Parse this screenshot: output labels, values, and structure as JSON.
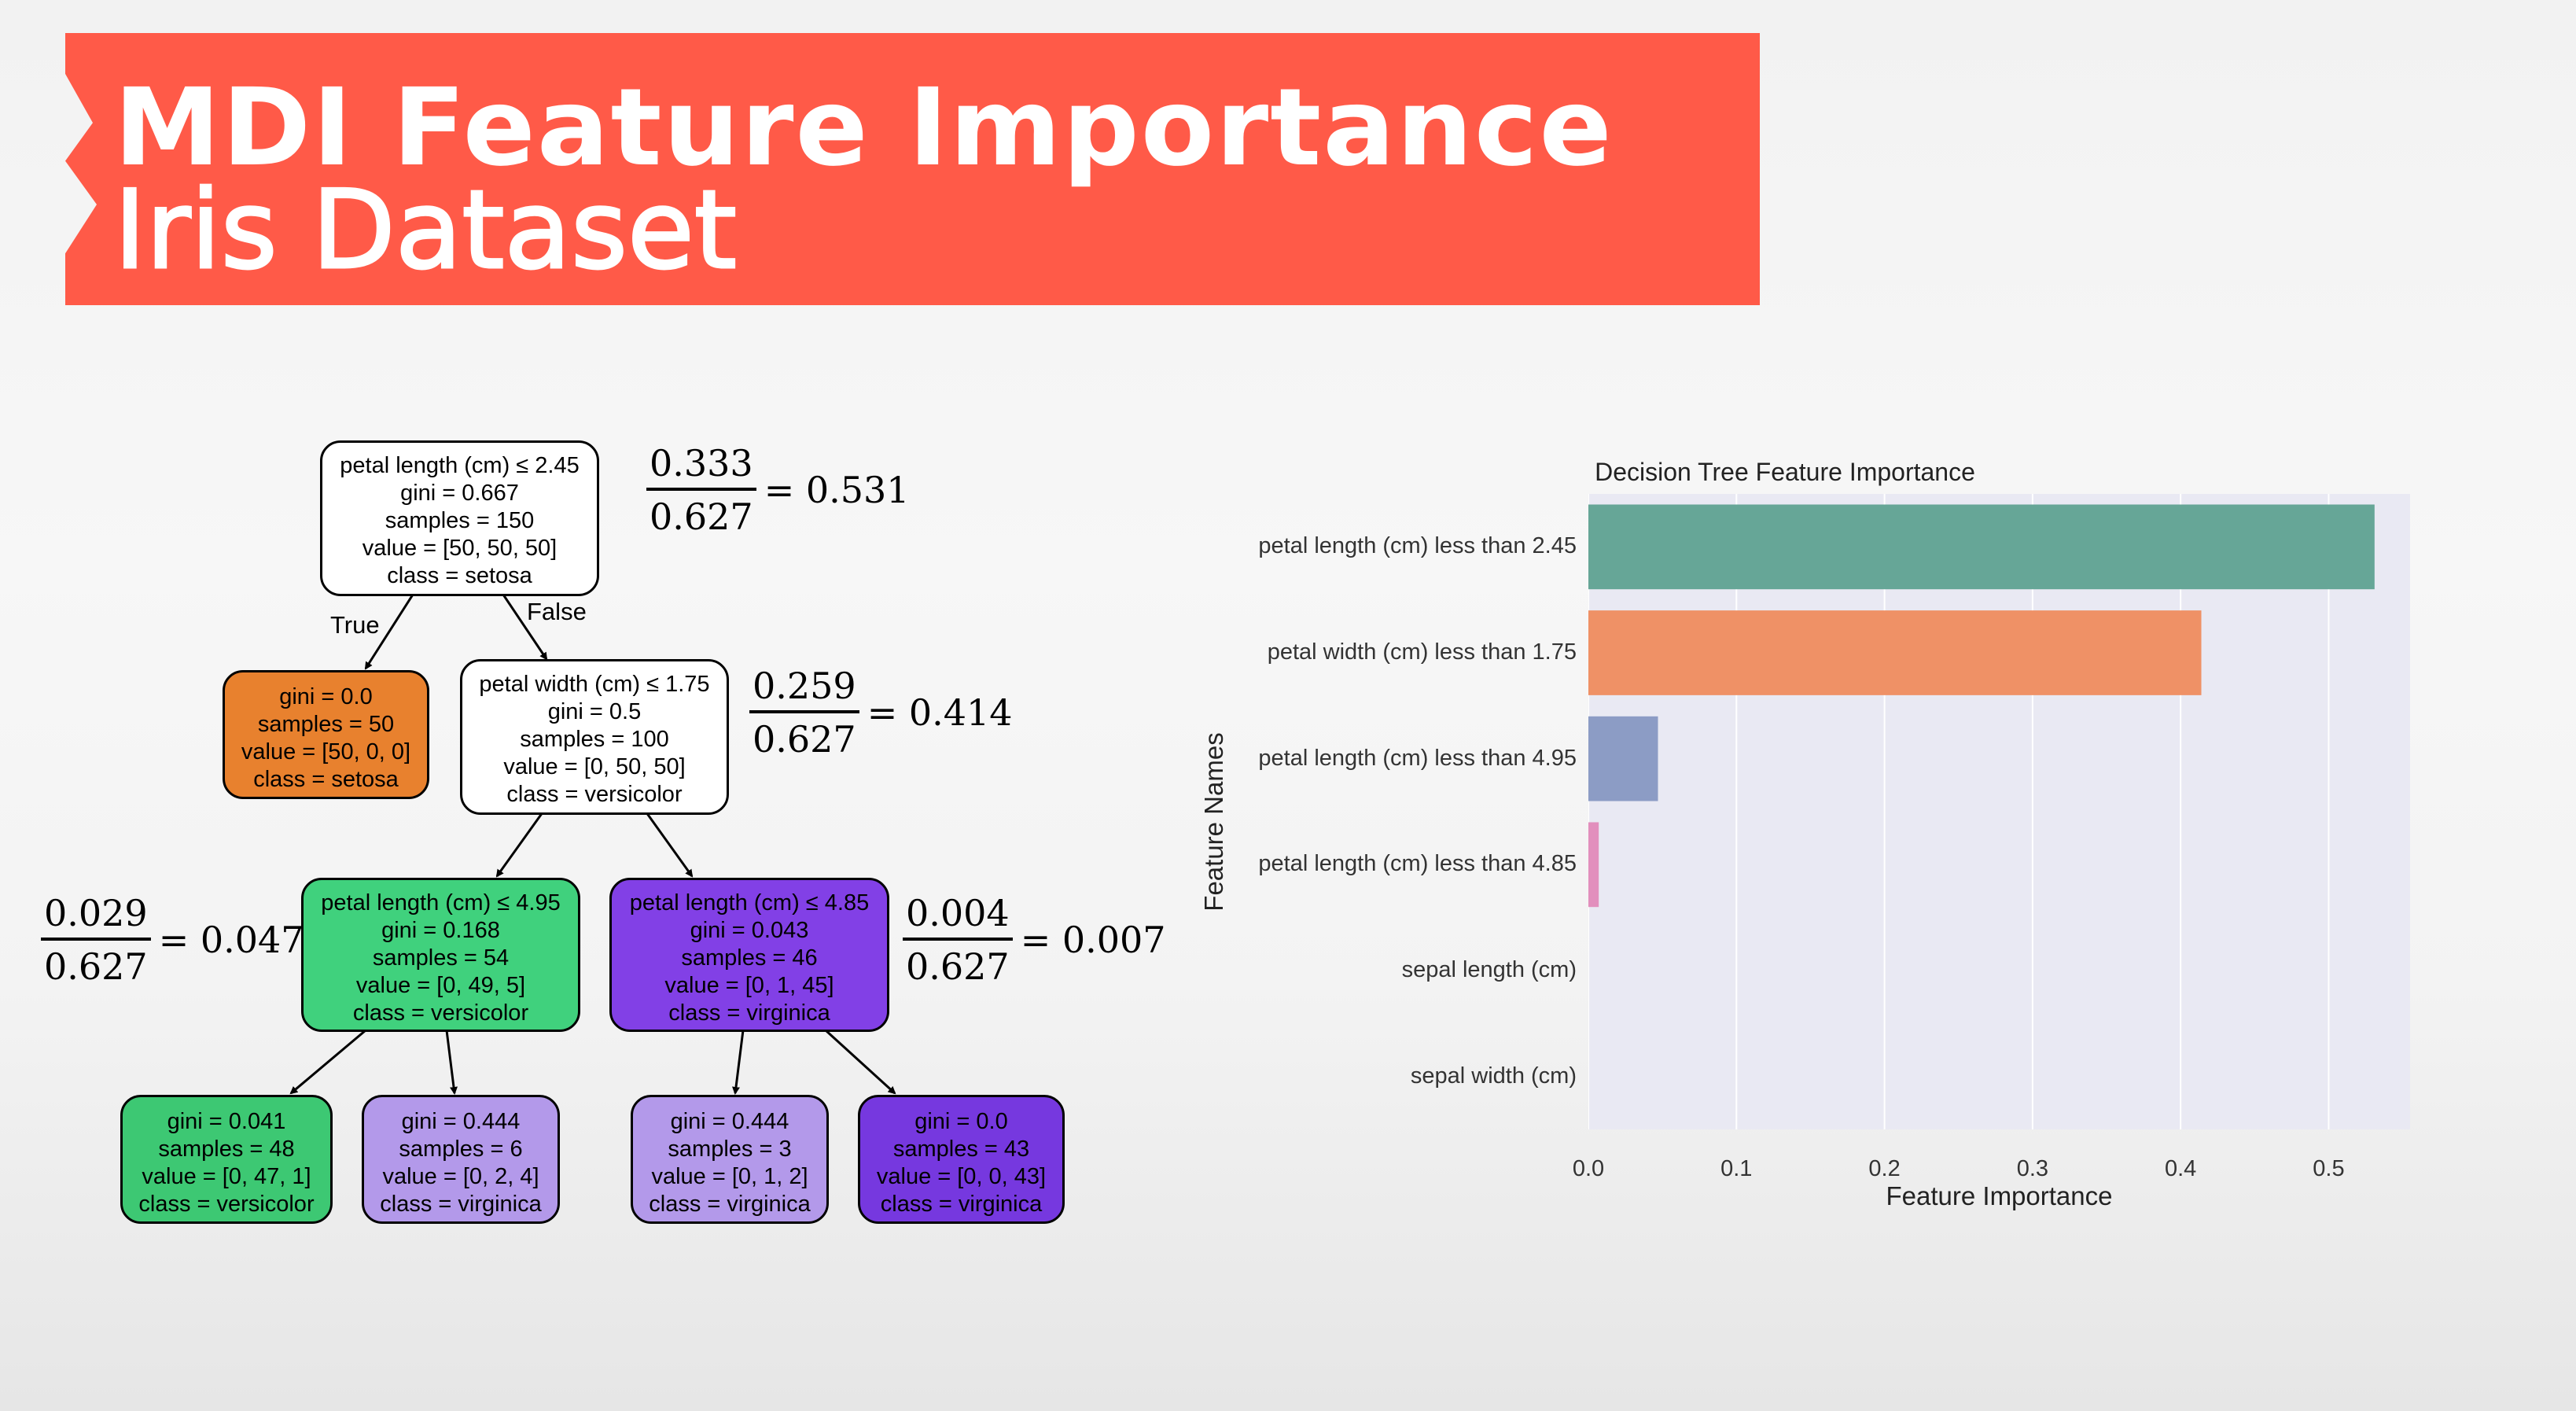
{
  "banner": {
    "line1": "MDI  Feature Importance",
    "line2": "Iris Dataset",
    "color": "#ff5a48"
  },
  "tree": {
    "nodes": [
      {
        "id": "root",
        "lines": [
          "petal length (cm) ≤ 2.45",
          "gini = 0.667",
          "samples = 150",
          "value = [50, 50, 50]",
          "class = setosa"
        ],
        "fill": "#ffffff"
      },
      {
        "id": "n1",
        "lines": [
          "gini = 0.0",
          "samples = 50",
          "value = [50, 0, 0]",
          "class = setosa"
        ],
        "fill": "#e8812e"
      },
      {
        "id": "n2",
        "lines": [
          "petal width (cm) ≤ 1.75",
          "gini = 0.5",
          "samples = 100",
          "value = [0, 50, 50]",
          "class = versicolor"
        ],
        "fill": "#ffffff"
      },
      {
        "id": "n3",
        "lines": [
          "petal length (cm) ≤ 4.95",
          "gini = 0.168",
          "samples = 54",
          "value = [0, 49, 5]",
          "class = versicolor"
        ],
        "fill": "#40d17d"
      },
      {
        "id": "n4",
        "lines": [
          "petal length (cm) ≤ 4.85",
          "gini = 0.043",
          "samples = 46",
          "value = [0, 1, 45]",
          "class = virginica"
        ],
        "fill": "#8240e6"
      },
      {
        "id": "n5",
        "lines": [
          "gini = 0.041",
          "samples = 48",
          "value = [0, 47, 1]",
          "class = versicolor"
        ],
        "fill": "#3dc873"
      },
      {
        "id": "n6",
        "lines": [
          "gini = 0.444",
          "samples = 6",
          "value = [0, 2, 4]",
          "class = virginica"
        ],
        "fill": "#b399ea"
      },
      {
        "id": "n7",
        "lines": [
          "gini = 0.444",
          "samples = 3",
          "value = [0, 1, 2]",
          "class = virginica"
        ],
        "fill": "#b399ea"
      },
      {
        "id": "n8",
        "lines": [
          "gini = 0.0",
          "samples = 43",
          "value = [0, 0, 43]",
          "class = virginica"
        ],
        "fill": "#7638df"
      }
    ],
    "edge_labels": {
      "true": "True",
      "false": "False"
    },
    "fractions": [
      {
        "id": "f-root",
        "num": "0.333",
        "den": "0.627",
        "result": "= 0.531"
      },
      {
        "id": "f-n2",
        "num": "0.259",
        "den": "0.627",
        "result": "= 0.414"
      },
      {
        "id": "f-n3",
        "num": "0.029",
        "den": "0.627",
        "result": "= 0.047"
      },
      {
        "id": "f-n4",
        "num": "0.004",
        "den": "0.627",
        "result": "= 0.007"
      }
    ]
  },
  "chart_data": {
    "type": "bar",
    "orientation": "horizontal",
    "title": "Decision Tree Feature Importance",
    "xlabel": "Feature Importance",
    "ylabel": "Feature Names",
    "categories": [
      "petal length (cm) less than 2.45",
      "petal width (cm) less than 1.75",
      "petal length (cm) less than 4.95",
      "petal length (cm) less than 4.85",
      "sepal length (cm)",
      "sepal width (cm)"
    ],
    "values": [
      0.531,
      0.414,
      0.047,
      0.007,
      0.0,
      0.0
    ],
    "colors": [
      "#66a697",
      "#ef9166",
      "#8c9cc5",
      "#e28fbd",
      "#a6d854",
      "#ffd92f"
    ],
    "xlim": [
      0.0,
      0.555
    ],
    "xticks": [
      "0.0",
      "0.1",
      "0.2",
      "0.3",
      "0.4",
      "0.5"
    ],
    "grid": true
  }
}
